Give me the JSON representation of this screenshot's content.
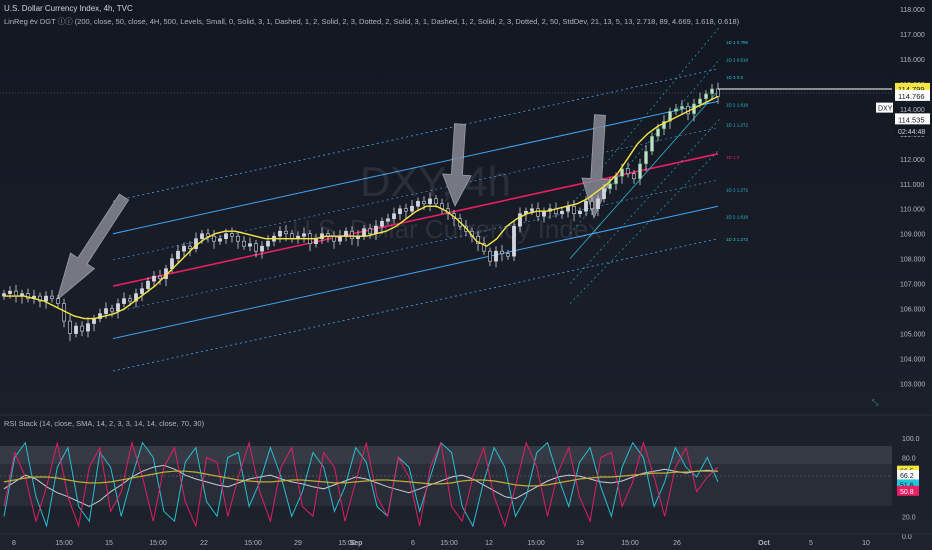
{
  "header": {
    "symbol_line": "U.S. Dollar Currency Index, 4h, TVC",
    "indicator_line": "LinReg ёv DGT ⓘⓘ (200, close, 50, close, 4H, 500, Levels, Small, 0, Solid, 3, 1, Dashed, 1, 2, Solid, 2, 3, Dotted, 2, Solid, 3, 1, Dashed, 1, 2, Solid, 2, 3, Dotted, 2, 50, StdDev, 21, 13, 5, 13, 2.718, 89, 4.669, 1.618, 0.618)"
  },
  "watermark": {
    "symbol": "DXY, 4h",
    "name": "U.S. Dollar Currency Index"
  },
  "rsi_pane": {
    "title": "RSI Stack (14, close, SMA, 14, 2, 3, 3, 14, 14, close, 70, 30)"
  },
  "price_tags": {
    "high": "114.799",
    "close": "114.766",
    "dxy_label": "DXY",
    "last": "114.535",
    "countdown": "02:44:48"
  },
  "rsi_tags": {
    "a": "66.5",
    "b": "66.2",
    "c": "51.6",
    "d": "50.8"
  },
  "colors": {
    "background": "#131722",
    "up": "#d1d4dc",
    "down": "#131722",
    "wick": "#d1d4dc",
    "ema": "#f5e642",
    "regression": "#e91e63",
    "inner_channel": "#2196f3",
    "outer_channel": "#42a5f5",
    "short_channel": "#26c6da",
    "rsi_white": "#d1d4dc",
    "rsi_cyan": "#26c6da",
    "rsi_pink": "#e91e63",
    "rsi_yellow": "#c9b037",
    "text": "#b2b5be"
  },
  "chart_data": [
    {
      "type": "candlestick",
      "title": "U.S. Dollar Currency Index, 4h, TVC",
      "ylim": [
        102.5,
        118.2
      ],
      "y_ticks": [
        "103.000",
        "104.000",
        "105.000",
        "106.000",
        "107.000",
        "108.000",
        "109.000",
        "110.000",
        "111.000",
        "112.000",
        "113.000",
        "114.000",
        "115.000",
        "116.000",
        "117.000",
        "118.000"
      ],
      "x_ticks": [
        "8",
        "15:00",
        "15",
        "15:00",
        "22",
        "15:00",
        "29",
        "15:00",
        "Sep",
        "6",
        "15:00",
        "12",
        "15:00",
        "19",
        "15:00",
        "26",
        "Oct",
        "5",
        "10"
      ],
      "regression_mid": [
        106.9,
        112.2
      ],
      "regression_levels": [
        "1D 1 0.786",
        "1D 2 0.618",
        "1D 3 0.5",
        "1D 2 1.618",
        "1D 1 1.272",
        "1D 1 0",
        "1D 2 1.272",
        "1D 2 1.618",
        "1D 3 1.272"
      ],
      "closes": [
        106.6,
        106.7,
        106.5,
        106.6,
        106.4,
        106.5,
        106.3,
        106.5,
        106.4,
        106.2,
        105.5,
        105.0,
        105.3,
        105.1,
        105.4,
        105.6,
        105.8,
        106.0,
        105.9,
        106.2,
        106.4,
        106.3,
        106.6,
        106.8,
        107.1,
        107.3,
        107.2,
        107.6,
        108.0,
        108.3,
        108.5,
        108.4,
        108.8,
        109.0,
        108.9,
        108.7,
        108.8,
        109.0,
        108.9,
        108.7,
        108.5,
        108.6,
        108.3,
        108.5,
        108.7,
        108.9,
        109.1,
        109.0,
        108.8,
        108.9,
        109.0,
        108.6,
        108.8,
        109.0,
        108.9,
        108.7,
        108.9,
        109.1,
        108.8,
        108.9,
        109.2,
        109.0,
        109.3,
        109.5,
        109.6,
        109.8,
        110.0,
        109.9,
        110.1,
        110.3,
        110.2,
        110.4,
        110.2,
        110.0,
        109.8,
        109.6,
        109.3,
        109.1,
        108.9,
        108.6,
        108.3,
        107.9,
        108.3,
        108.2,
        108.1,
        109.3,
        109.8,
        109.9,
        110.0,
        109.7,
        109.9,
        110.0,
        109.8,
        109.9,
        110.1,
        109.8,
        109.9,
        110.3,
        110.0,
        110.4,
        110.8,
        111.0,
        111.3,
        111.6,
        111.4,
        111.2,
        111.8,
        112.3,
        112.9,
        113.2,
        113.5,
        113.9,
        114.0,
        114.1,
        113.8,
        114.2,
        114.4,
        114.6,
        114.8,
        114.5
      ],
      "ema": [
        106.5,
        106.5,
        106.5,
        106.4,
        106.3,
        106.1,
        105.9,
        105.7,
        105.6,
        105.6,
        105.7,
        105.8,
        106.0,
        106.3,
        106.6,
        106.9,
        107.3,
        107.7,
        108.1,
        108.5,
        108.8,
        109.0,
        109.1,
        109.1,
        109.0,
        108.9,
        108.8,
        108.8,
        108.8,
        108.8,
        108.8,
        108.8,
        108.9,
        108.9,
        108.9,
        108.9,
        108.9,
        109.0,
        109.1,
        109.3,
        109.6,
        109.9,
        110.1,
        110.1,
        109.9,
        109.6,
        109.2,
        108.7,
        108.5,
        108.8,
        109.3,
        109.6,
        109.8,
        109.9,
        109.9,
        110.0,
        110.1,
        110.2,
        110.4,
        110.7,
        111.0,
        111.4,
        112.0,
        112.6,
        113.0,
        113.3,
        113.5,
        113.7,
        113.9,
        114.1,
        114.3,
        114.5
      ]
    },
    {
      "type": "line",
      "title": "RSI Stack (14, close, SMA, 14, 2, 3, 3, 14, 14, close, 70, 30)",
      "ylim": [
        6,
        110
      ],
      "y_ticks": [
        "100.0",
        "80.0",
        "60.0",
        "20.0",
        "0.0"
      ],
      "overbought": 70,
      "oversold": 30,
      "midline": 50,
      "series": [
        {
          "values": [
            48,
            55,
            62,
            58,
            50,
            44,
            40,
            35,
            30,
            36,
            45,
            52,
            60,
            66,
            70,
            72,
            68,
            62,
            58,
            55,
            52,
            50,
            54,
            58,
            60,
            62,
            58,
            55,
            53,
            50,
            48,
            52,
            56,
            60,
            58,
            54,
            50,
            47,
            44,
            48,
            52,
            56,
            60,
            62,
            58,
            52,
            46,
            40,
            38,
            44,
            50,
            56,
            60,
            62,
            61,
            58,
            55,
            54,
            56,
            60,
            64,
            66,
            68,
            66,
            64,
            66,
            67,
            66
          ]
        },
        {
          "values": [
            20,
            80,
            95,
            40,
            10,
            70,
            90,
            30,
            15,
            85,
            70,
            20,
            60,
            95,
            80,
            25,
            15,
            75,
            90,
            35,
            20,
            80,
            85,
            30,
            55,
            90,
            60,
            20,
            45,
            85,
            70,
            25,
            50,
            90,
            75,
            30,
            20,
            80,
            70,
            25,
            60,
            95,
            85,
            30,
            10,
            55,
            90,
            70,
            20,
            40,
            85,
            95,
            60,
            30,
            75,
            90,
            50,
            20,
            70,
            95,
            80,
            30,
            55,
            90,
            70,
            60,
            80,
            55
          ]
        },
        {
          "values": [
            30,
            85,
            60,
            15,
            50,
            95,
            40,
            10,
            70,
            90,
            25,
            45,
            95,
            60,
            15,
            70,
            90,
            35,
            10,
            80,
            75,
            20,
            60,
            95,
            45,
            15,
            70,
            90,
            30,
            20,
            85,
            70,
            15,
            55,
            95,
            40,
            20,
            80,
            60,
            10,
            70,
            95,
            30,
            15,
            60,
            90,
            40,
            10,
            50,
            95,
            70,
            20,
            65,
            90,
            40,
            15,
            80,
            85,
            30,
            55,
            95,
            60,
            20,
            70,
            90,
            45,
            60,
            70
          ]
        },
        {
          "values": [
            55,
            57,
            59,
            60,
            60,
            59,
            57,
            55,
            54,
            54,
            55,
            57,
            59,
            61,
            63,
            65,
            66,
            66,
            65,
            63,
            61,
            59,
            57,
            56,
            55,
            55,
            56,
            57,
            57,
            56,
            55,
            54,
            54,
            55,
            56,
            57,
            57,
            56,
            55,
            54,
            53,
            53,
            54,
            56,
            57,
            57,
            56,
            54,
            52,
            51,
            51,
            52,
            54,
            56,
            58,
            59,
            60,
            60,
            61,
            62,
            63,
            64,
            64,
            65,
            65,
            66,
            66,
            66
          ]
        }
      ]
    }
  ]
}
